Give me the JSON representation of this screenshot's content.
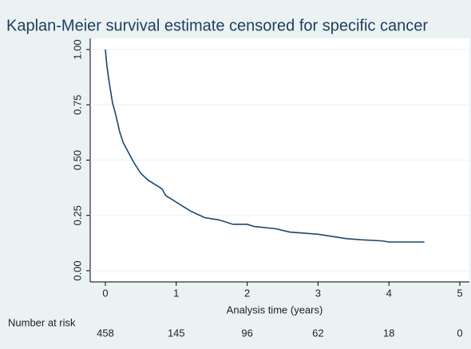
{
  "chart_data": {
    "type": "line",
    "title": "Kaplan-Meier survival estimate censored for specific cancer",
    "x_label": "Analysis time (years)",
    "x": [
      0,
      0.02,
      0.05,
      0.08,
      0.1,
      0.15,
      0.2,
      0.25,
      0.3,
      0.35,
      0.4,
      0.5,
      0.6,
      0.7,
      0.8,
      0.85,
      0.95,
      1.0,
      1.1,
      1.2,
      1.3,
      1.4,
      1.6,
      1.8,
      2.0,
      2.1,
      2.4,
      2.6,
      2.8,
      3.0,
      3.2,
      3.4,
      3.6,
      3.9,
      4.0,
      4.5
    ],
    "series": [
      {
        "color": "#1a476f",
        "values": [
          1.0,
          0.93,
          0.86,
          0.8,
          0.76,
          0.7,
          0.63,
          0.58,
          0.55,
          0.52,
          0.49,
          0.44,
          0.41,
          0.39,
          0.37,
          0.34,
          0.32,
          0.31,
          0.29,
          0.27,
          0.255,
          0.24,
          0.23,
          0.21,
          0.21,
          0.2,
          0.19,
          0.175,
          0.17,
          0.165,
          0.155,
          0.145,
          0.14,
          0.135,
          0.13,
          0.13
        ]
      }
    ],
    "xlim": [
      0,
      5
    ],
    "xticks": [
      0,
      1,
      2,
      3,
      4,
      5
    ],
    "ylim": [
      0,
      1
    ],
    "yticks": [
      {
        "value": 0,
        "label": "0.00"
      },
      0.25,
      {
        "value": 0.5,
        "label": "0.50"
      },
      0.75,
      {
        "value": 1,
        "label": "1.00"
      }
    ],
    "grid": true,
    "risk_table": {
      "label": "Number at risk",
      "values": [
        458,
        145,
        96,
        62,
        18,
        0
      ]
    }
  }
}
